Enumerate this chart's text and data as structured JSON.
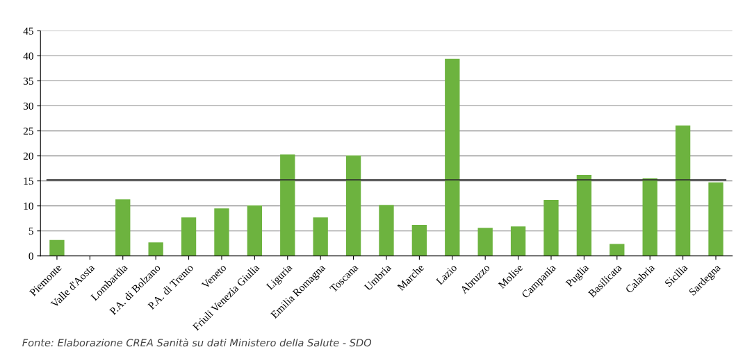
{
  "chart_data": {
    "type": "bar",
    "categories": [
      "Piemonte",
      "Valle d'Aosta",
      "Lombardia",
      "P.A. di Bolzano",
      "P.A. di Trento",
      "Veneto",
      "Friuli Venezia Giulia",
      "Liguria",
      "Emilia Romagna",
      "Toscana",
      "Umbria",
      "Marche",
      "Lazio",
      "Abruzzo",
      "Molise",
      "Campania",
      "Puglia",
      "Basilicata",
      "Calabria",
      "Sicilia",
      "Sardegna"
    ],
    "values": [
      3.2,
      0,
      11.3,
      2.7,
      7.7,
      9.5,
      10.1,
      20.3,
      7.7,
      20.1,
      10.2,
      6.2,
      39.4,
      5.6,
      5.9,
      11.2,
      16.2,
      2.4,
      15.5,
      26.1,
      14.7
    ],
    "color": "#6db33f",
    "ylim": [
      0,
      45
    ],
    "yticks": [
      0,
      5,
      10,
      15,
      20,
      25,
      30,
      35,
      40,
      45
    ],
    "grid": "y",
    "legend": false,
    "ref_lines": [
      {
        "axis": "y",
        "value": 15.2,
        "color": "#2b2b2b",
        "line_style": "solid"
      }
    ],
    "annotations": [
      "Fonte: Elaborazione CREA Sanità su dati Ministero della Salute - SDO"
    ]
  }
}
